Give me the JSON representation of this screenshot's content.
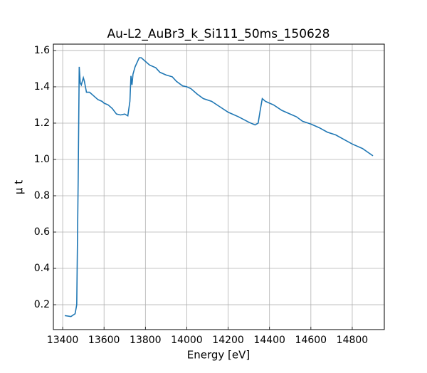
{
  "chart_data": {
    "type": "line",
    "title": "Au-L2_AuBr3_k_Si111_50ms_150628",
    "x_label": "Energy [eV]",
    "y_label": "μ t",
    "x": [
      13410,
      13440,
      13460,
      13468,
      13475,
      13480,
      13485,
      13490,
      13500,
      13505,
      13515,
      13530,
      13550,
      13570,
      13590,
      13600,
      13620,
      13640,
      13660,
      13680,
      13700,
      13715,
      13725,
      13730,
      13735,
      13740,
      13750,
      13770,
      13780,
      13800,
      13820,
      13850,
      13870,
      13900,
      13930,
      13950,
      13980,
      14000,
      14020,
      14050,
      14080,
      14120,
      14160,
      14200,
      14250,
      14300,
      14330,
      14345,
      14355,
      14365,
      14380,
      14420,
      14460,
      14500,
      14530,
      14560,
      14600,
      14640,
      14680,
      14720,
      14760,
      14800,
      14850,
      14900
    ],
    "series": [
      {
        "name": "data",
        "color": "#1f77b4",
        "values": [
          0.14,
          0.135,
          0.15,
          0.2,
          0.9,
          1.51,
          1.42,
          1.41,
          1.45,
          1.43,
          1.37,
          1.37,
          1.35,
          1.33,
          1.32,
          1.31,
          1.3,
          1.28,
          1.25,
          1.245,
          1.25,
          1.24,
          1.32,
          1.46,
          1.41,
          1.47,
          1.51,
          1.56,
          1.56,
          1.54,
          1.52,
          1.505,
          1.48,
          1.465,
          1.455,
          1.43,
          1.405,
          1.4,
          1.39,
          1.36,
          1.335,
          1.32,
          1.29,
          1.26,
          1.235,
          1.205,
          1.19,
          1.2,
          1.27,
          1.335,
          1.32,
          1.3,
          1.27,
          1.25,
          1.235,
          1.21,
          1.195,
          1.175,
          1.15,
          1.135,
          1.11,
          1.085,
          1.06,
          1.02
        ]
      }
    ],
    "xlim": [
      13355,
      14955
    ],
    "ylim": [
      0.063,
      1.635
    ],
    "xticks": [
      13400,
      13600,
      13800,
      14000,
      14200,
      14400,
      14600,
      14800
    ],
    "yticks": [
      {
        "value": 0.2,
        "label": "0.2"
      },
      {
        "value": 0.4,
        "label": "0.4"
      },
      {
        "value": 0.6,
        "label": "0.6"
      },
      {
        "value": 0.8,
        "label": "0.8"
      },
      {
        "value": 1.0,
        "label": "1.0"
      },
      {
        "value": 1.2,
        "label": "1.2"
      },
      {
        "value": 1.4,
        "label": "1.4"
      },
      {
        "value": 1.6,
        "label": "1.6"
      }
    ],
    "grid": true
  }
}
